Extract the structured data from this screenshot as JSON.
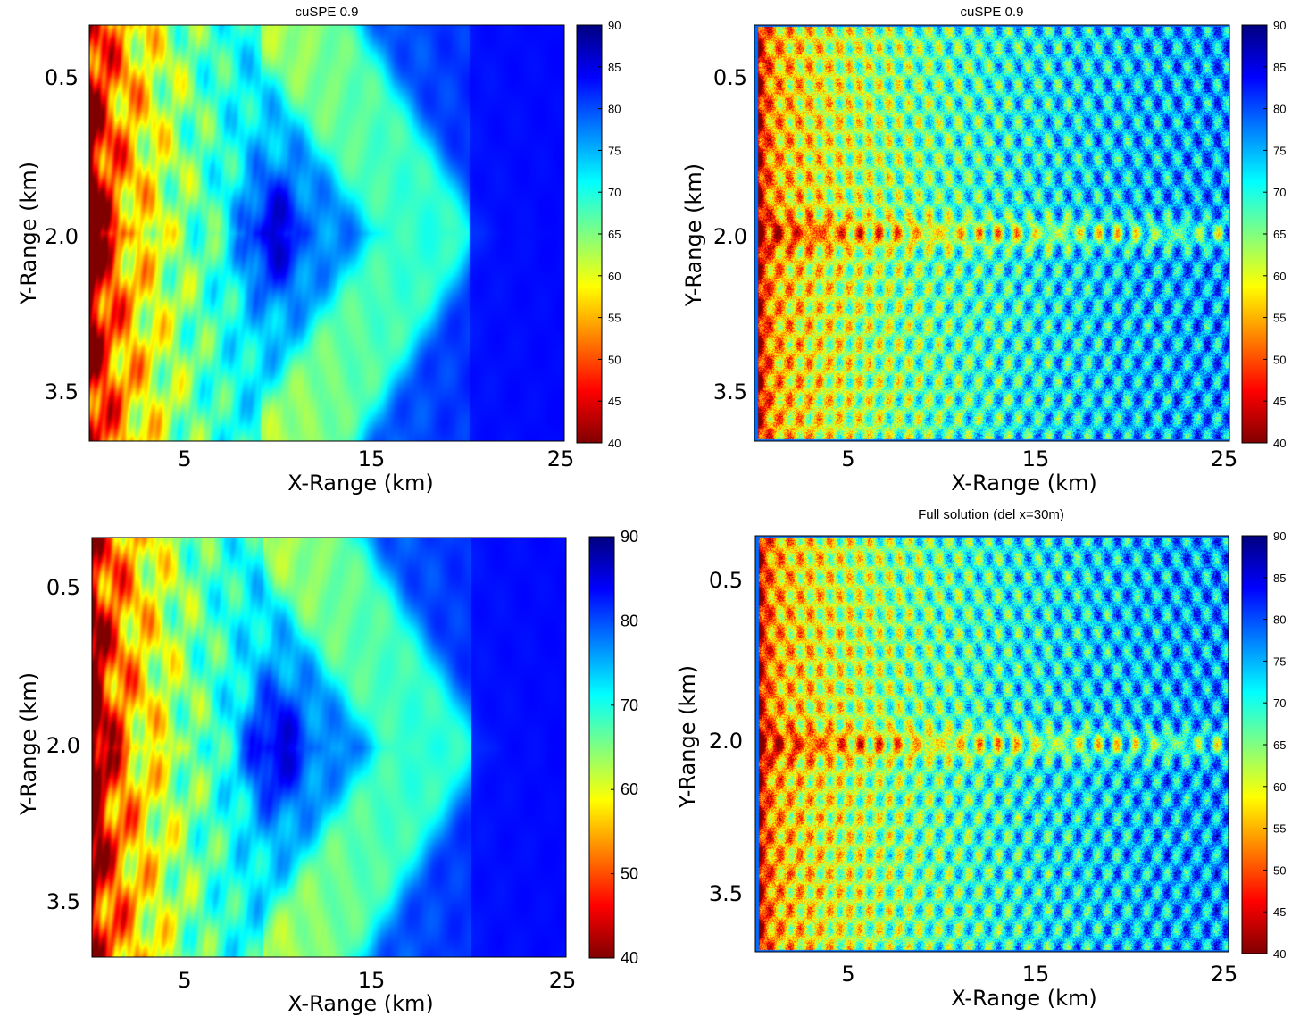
{
  "colors": {
    "jet": [
      "#000080",
      "#0000ff",
      "#0080ff",
      "#00ffff",
      "#80ff80",
      "#ffff00",
      "#ff8000",
      "#ff0000",
      "#800000"
    ],
    "background": "#ffffff"
  },
  "chart_data": [
    {
      "type": "heatmap",
      "panel": "top-left",
      "title": "cuSPE 0.9",
      "xlabel": "X-Range (km)",
      "ylabel": "Y-Range (km)",
      "xlim": [
        0,
        25
      ],
      "ylim": [
        0,
        4.0
      ],
      "xticks": [
        5,
        15,
        25
      ],
      "xtick_labels": [
        "5",
        "15",
        "25"
      ],
      "yticks": [
        0.5,
        2.0,
        3.5
      ],
      "ytick_labels": [
        "0.5",
        "2.0",
        "3.5"
      ],
      "colorbar": {
        "min": 40,
        "max": 90,
        "ticks": [
          "90",
          "85",
          "80",
          "75",
          "70",
          "65",
          "60",
          "55",
          "50",
          "45",
          "40"
        ]
      },
      "pattern": "smooth"
    },
    {
      "type": "heatmap",
      "panel": "top-right",
      "title": "cuSPE 0.9",
      "xlabel": "X-Range (km)",
      "ylabel": "Y-Range (km)",
      "xlim": [
        0,
        25
      ],
      "ylim": [
        0,
        4.0
      ],
      "xticks": [
        5,
        15,
        25
      ],
      "xtick_labels": [
        "5",
        "15",
        "25"
      ],
      "yticks": [
        0.5,
        2.0,
        3.5
      ],
      "ytick_labels": [
        "0.5",
        "2.0",
        "3.5"
      ],
      "colorbar": {
        "min": 40,
        "max": 90,
        "ticks": [
          "90",
          "85",
          "80",
          "75",
          "70",
          "65",
          "60",
          "55",
          "50",
          "45",
          "40"
        ]
      },
      "pattern": "noisy"
    },
    {
      "type": "heatmap",
      "panel": "bottom-left",
      "title": "",
      "xlabel": "X-Range (km)",
      "ylabel": "Y-Range (km)",
      "xlim": [
        0,
        25
      ],
      "ylim": [
        0,
        4.0
      ],
      "xticks": [
        5,
        15,
        25
      ],
      "xtick_labels": [
        "5",
        "15",
        "25"
      ],
      "yticks": [
        0.5,
        2.0,
        3.5
      ],
      "ytick_labels": [
        "0.5",
        "2.0",
        "3.5"
      ],
      "colorbar": {
        "min": 40,
        "max": 90,
        "ticks": [
          "90",
          "80",
          "70",
          "60",
          "50",
          "40"
        ]
      },
      "pattern": "smooth"
    },
    {
      "type": "heatmap",
      "panel": "bottom-right",
      "title": "Full solution (del x=30m)",
      "xlabel": "X-Range (km)",
      "ylabel": "Y-Range (km)",
      "xlim": [
        0,
        25
      ],
      "ylim": [
        0,
        4.0
      ],
      "xticks": [
        5,
        15,
        25
      ],
      "xtick_labels": [
        "5",
        "15",
        "25"
      ],
      "yticks": [
        0.5,
        2.0,
        3.5
      ],
      "ytick_labels": [
        "0.5",
        "2.0",
        "3.5"
      ],
      "colorbar": {
        "min": 40,
        "max": 90,
        "ticks": [
          "90",
          "85",
          "80",
          "75",
          "70",
          "65",
          "60",
          "55",
          "50",
          "45",
          "40"
        ]
      },
      "pattern": "noisy"
    }
  ]
}
